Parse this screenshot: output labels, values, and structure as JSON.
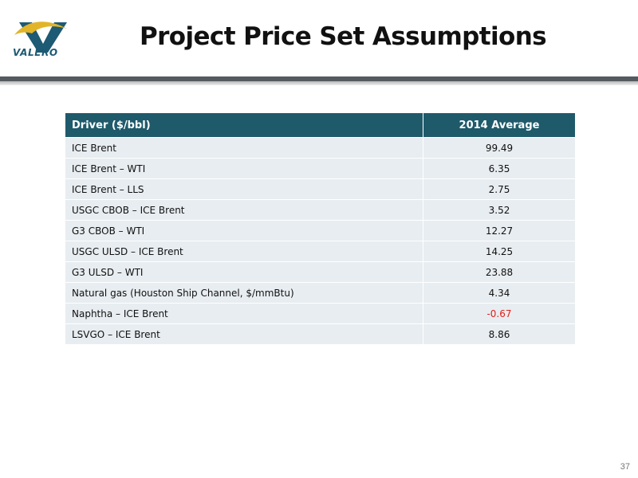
{
  "brand": {
    "logo_text": "VALERO",
    "colors": {
      "teal": "#1d5a73",
      "gold": "#e2b428"
    }
  },
  "slide": {
    "title": "Project Price Set Assumptions",
    "page_number": "37"
  },
  "table": {
    "header_color": "#1f5a6b",
    "row_color": "#e8edf1",
    "negative_color": "#e0201b",
    "headers": [
      "Driver ($/bbl)",
      "2014 Average"
    ],
    "rows": [
      {
        "driver": "ICE Brent",
        "value": "99.49"
      },
      {
        "driver": "ICE Brent – WTI",
        "value": "6.35"
      },
      {
        "driver": "ICE Brent – LLS",
        "value": "2.75"
      },
      {
        "driver": "USGC CBOB – ICE Brent",
        "value": "3.52"
      },
      {
        "driver": "G3 CBOB – WTI",
        "value": "12.27"
      },
      {
        "driver": "USGC ULSD – ICE Brent",
        "value": "14.25"
      },
      {
        "driver": "G3 ULSD – WTI",
        "value": "23.88"
      },
      {
        "driver": "Natural gas (Houston Ship Channel, $/mmBtu)",
        "value": "4.34"
      },
      {
        "driver": "Naphtha – ICE Brent",
        "value": "-0.67"
      },
      {
        "driver": "LSVGO – ICE Brent",
        "value": "8.86"
      }
    ]
  }
}
